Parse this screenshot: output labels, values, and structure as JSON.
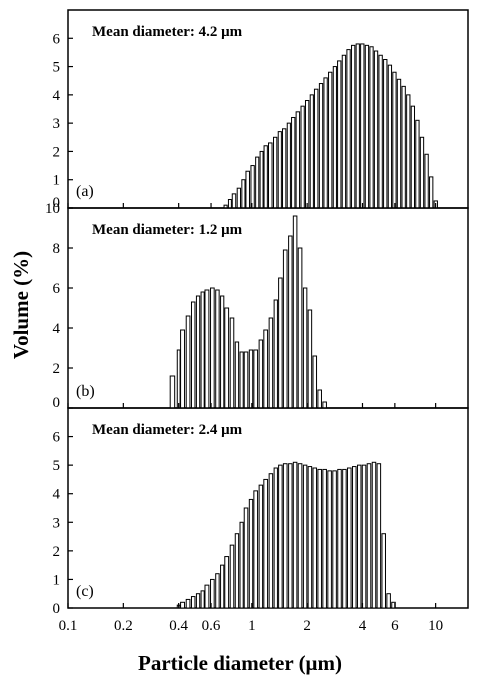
{
  "chart_data": {
    "type": "bar",
    "x_scale": "log",
    "xlim": [
      0.1,
      15
    ],
    "x_ticks": [
      {
        "value": 0.1,
        "label": "0.1"
      },
      {
        "value": 0.2,
        "label": "0.2"
      },
      {
        "value": 0.4,
        "label": "0.4"
      },
      {
        "value": 0.6,
        "label": "0.6"
      },
      {
        "value": 1,
        "label": "1"
      },
      {
        "value": 2,
        "label": "2"
      },
      {
        "value": 4,
        "label": "4"
      },
      {
        "value": 6,
        "label": "6"
      },
      {
        "value": 10,
        "label": "10"
      }
    ],
    "xlabel": "Particle diameter (μm)",
    "ylabel": "Volume (%)",
    "panels": [
      {
        "label": "(a)",
        "annotation": "Mean diameter: 4.2 μm",
        "ylim": [
          0,
          7
        ],
        "y_ticks": [
          "0",
          "1",
          "2",
          "3",
          "4",
          "5",
          "6"
        ],
        "y_tick_values": [
          0,
          1,
          2,
          3,
          4,
          5,
          6
        ],
        "x": [
          0.72,
          0.76,
          0.8,
          0.85,
          0.9,
          0.95,
          1.01,
          1.07,
          1.13,
          1.19,
          1.26,
          1.34,
          1.42,
          1.5,
          1.59,
          1.68,
          1.78,
          1.89,
          2.0,
          2.12,
          2.24,
          2.38,
          2.52,
          2.67,
          2.83,
          2.99,
          3.17,
          3.36,
          3.56,
          3.77,
          3.99,
          4.23,
          4.48,
          4.74,
          5.02,
          5.32,
          5.64,
          5.97,
          6.32,
          6.7,
          7.1,
          7.52,
          7.96,
          8.43,
          8.93,
          9.46,
          10.02,
          10.62
        ],
        "values": [
          0.1,
          0.3,
          0.5,
          0.7,
          1.0,
          1.3,
          1.5,
          1.8,
          2.0,
          2.2,
          2.3,
          2.5,
          2.7,
          2.8,
          3.0,
          3.2,
          3.4,
          3.6,
          3.8,
          4.0,
          4.2,
          4.4,
          4.6,
          4.8,
          5.0,
          5.2,
          5.4,
          5.6,
          5.75,
          5.8,
          5.8,
          5.75,
          5.7,
          5.55,
          5.4,
          5.25,
          5.05,
          4.8,
          4.55,
          4.3,
          4.0,
          3.6,
          3.1,
          2.5,
          1.9,
          1.1,
          0.25,
          0.0
        ]
      },
      {
        "label": "(b)",
        "annotation": "Mean diameter: 1.2 μm",
        "ylim": [
          0,
          10
        ],
        "y_ticks": [
          "0",
          "2",
          "4",
          "6",
          "8",
          "10"
        ],
        "y_tick_values": [
          0,
          2,
          4,
          6,
          8,
          10
        ],
        "x": [
          0.37,
          0.4,
          0.42,
          0.45,
          0.48,
          0.51,
          0.54,
          0.57,
          0.61,
          0.65,
          0.69,
          0.73,
          0.78,
          0.83,
          0.88,
          0.93,
          0.99,
          1.05,
          1.12,
          1.19,
          1.27,
          1.35,
          1.43,
          1.52,
          1.62,
          1.72,
          1.83,
          1.95,
          2.07,
          2.2,
          2.34,
          2.49
        ],
        "values": [
          1.6,
          2.9,
          3.9,
          4.6,
          5.3,
          5.6,
          5.8,
          5.9,
          6.0,
          5.9,
          5.6,
          5.0,
          4.5,
          3.3,
          2.8,
          2.8,
          2.9,
          2.9,
          3.4,
          3.9,
          4.5,
          5.4,
          6.5,
          7.9,
          8.6,
          9.6,
          8.0,
          6.0,
          4.9,
          2.6,
          0.9,
          0.3
        ]
      },
      {
        "label": "(c)",
        "annotation": "Mean diameter: 2.4 μm",
        "ylim": [
          0,
          7
        ],
        "y_ticks": [
          "0",
          "1",
          "2",
          "3",
          "4",
          "5",
          "6"
        ],
        "y_tick_values": [
          0,
          1,
          2,
          3,
          4,
          5,
          6
        ],
        "x": [
          0.4,
          0.42,
          0.45,
          0.48,
          0.51,
          0.54,
          0.57,
          0.61,
          0.65,
          0.69,
          0.73,
          0.78,
          0.83,
          0.88,
          0.93,
          0.99,
          1.05,
          1.12,
          1.19,
          1.27,
          1.35,
          1.43,
          1.52,
          1.62,
          1.72,
          1.83,
          1.95,
          2.07,
          2.2,
          2.34,
          2.49,
          2.65,
          2.82,
          3.0,
          3.19,
          3.39,
          3.61,
          3.84,
          4.08,
          4.34,
          4.62,
          4.91,
          5.22,
          5.55,
          5.9
        ],
        "values": [
          0.1,
          0.2,
          0.3,
          0.4,
          0.5,
          0.6,
          0.8,
          1.0,
          1.2,
          1.5,
          1.8,
          2.2,
          2.6,
          3.0,
          3.5,
          3.8,
          4.1,
          4.3,
          4.5,
          4.7,
          4.9,
          5.0,
          5.05,
          5.05,
          5.1,
          5.05,
          5.0,
          4.95,
          4.9,
          4.85,
          4.85,
          4.8,
          4.8,
          4.85,
          4.85,
          4.9,
          4.95,
          5.0,
          5.0,
          5.05,
          5.1,
          5.05,
          2.6,
          0.5,
          0.2
        ]
      }
    ]
  }
}
